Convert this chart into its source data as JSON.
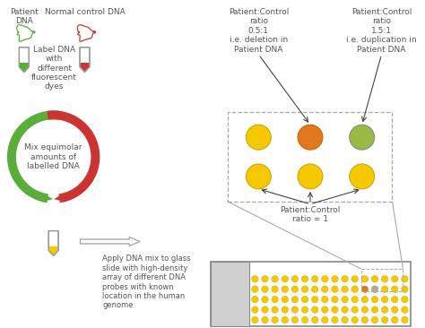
{
  "bg_color": "#ffffff",
  "text_color": "#555555",
  "green_color": "#5aad3a",
  "red_color": "#cc3333",
  "orange_color": "#e07820",
  "yellow_color": "#f5c800",
  "yellow_edge": "#ccaa00",
  "green_dot_color": "#99bb44",
  "label_patient": "Patient\nDNA",
  "label_normal": "Normal control DNA",
  "label_mix": "Mix equimolar\namounts of\nlabelled DNA",
  "label_apply": "Apply DNA mix to glass\nslide with high-density\narray of different DNA\nprobes with known\nlocation in the human\ngenome",
  "label_label_dna": "Label DNA\nwith\ndifferent\nfluorescent\ndyes",
  "label_ratio_left": "Patient:Control\nratio\n0.5:1\ni.e. deletion in\nPatient DNA",
  "label_ratio_right": "Patient:Control\nratio\n1.5:1\ni.e. duplication in\nPatient DNA",
  "label_ratio_center": "Patient:Control\nratio = 1"
}
